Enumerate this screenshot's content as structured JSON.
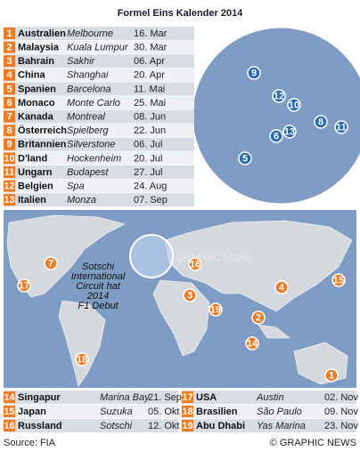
{
  "header": {
    "title": "Formel Eins Kalender 2014"
  },
  "races": [
    {
      "number": "1",
      "country": "Australien",
      "city": "Melbourne",
      "date": "16. Mar"
    },
    {
      "number": "2",
      "country": "Malaysia",
      "city": "Kuala Lumpur",
      "date": "30. Mar"
    },
    {
      "number": "3",
      "country": "Bahrain",
      "city": "Sakhir",
      "date": "06. Apr"
    },
    {
      "number": "4",
      "country": "China",
      "city": "Shanghai",
      "date": "20. Apr"
    },
    {
      "number": "5",
      "country": "Spanien",
      "city": "Barcelona",
      "date": "11. Mai"
    },
    {
      "number": "6",
      "country": "Monaco",
      "city": "Monte Carlo",
      "date": "25. Mai"
    },
    {
      "number": "7",
      "country": "Kanada",
      "city": "Montreal",
      "date": "08. Jun"
    },
    {
      "number": "8",
      "country": "Österreich",
      "city": "Spielberg",
      "date": "22. Jun"
    },
    {
      "number": "9",
      "country": "Britannien",
      "city": "Silverstone",
      "date": "06. Jul"
    },
    {
      "number": "10",
      "country": "D'land",
      "city": "Hockenheim",
      "date": "20. Jul"
    },
    {
      "number": "11",
      "country": "Ungarn",
      "city": "Budapest",
      "date": "27. Jul"
    },
    {
      "number": "12",
      "country": "Belgien",
      "city": "Spa",
      "date": "24. Aug"
    },
    {
      "number": "13",
      "country": "Italien",
      "city": "Monza",
      "date": "07. Sep"
    },
    {
      "number": "14",
      "country": "Singapur",
      "city": "Marina Bay",
      "date": "21. Sep"
    },
    {
      "number": "15",
      "country": "Japan",
      "city": "Suzuka",
      "date": "05. Okt"
    },
    {
      "number": "16",
      "country": "Russland",
      "city": "Sotschi",
      "date": "12. Okt"
    },
    {
      "number": "17",
      "country": "USA",
      "city": "Austin",
      "date": "02. Nov"
    },
    {
      "number": "18",
      "country": "Brasilien",
      "city": "São Paulo",
      "date": "09. Nov"
    },
    {
      "number": "19",
      "country": "Abu Dhabi",
      "city": "Yas Marina",
      "date": "23. Nov"
    }
  ],
  "annotation": [
    "Sotschi",
    "International",
    "Circuit hat",
    "2014",
    "F1 Debut"
  ],
  "watermark": "GRAPHIC NEWS",
  "footer": {
    "source": "Source: FIA",
    "credit": "© GRAPHIC NEWS"
  }
}
